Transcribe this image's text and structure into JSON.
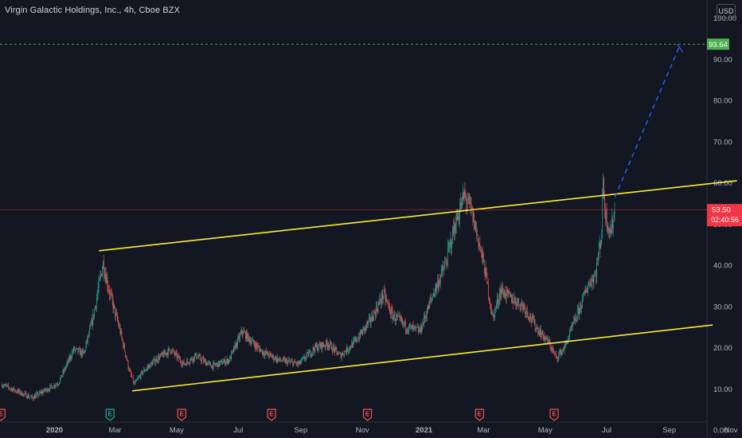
{
  "legend": "Virgin Galactic Holdings, Inc., 4h, Cboe BZX",
  "currency_button": "USD",
  "colors": {
    "background": "#131722",
    "up": "#26a69a",
    "down": "#ef5350",
    "channel": "#ffeb3b",
    "projection": "#2962ff",
    "target_label": "#4caf50",
    "price_label": "#f23645",
    "axis_text": "#b2b5be"
  },
  "chart_data": {
    "type": "candlestick",
    "title": "Virgin Galactic Holdings, Inc., 4h, Cboe BZX",
    "x_ticks": [
      {
        "label": "2020",
        "date": "2020-01-01",
        "bold": true
      },
      {
        "label": "Mar",
        "date": "2020-03-01"
      },
      {
        "label": "May",
        "date": "2020-05-01"
      },
      {
        "label": "Jul",
        "date": "2020-07-01"
      },
      {
        "label": "Sep",
        "date": "2020-09-01"
      },
      {
        "label": "Nov",
        "date": "2020-11-01"
      },
      {
        "label": "2021",
        "date": "2021-01-01",
        "bold": true
      },
      {
        "label": "Mar",
        "date": "2021-03-01"
      },
      {
        "label": "May",
        "date": "2021-05-01"
      },
      {
        "label": "Jul",
        "date": "2021-07-01"
      },
      {
        "label": "Sep",
        "date": "2021-09-01"
      },
      {
        "label": "Nov",
        "date": "2021-11-01"
      }
    ],
    "y_ticks": [
      "0.00",
      "10.00",
      "20.00",
      "30.00",
      "40.00",
      "50.00",
      "60.00",
      "70.00",
      "80.00",
      "90.00",
      "100.00"
    ],
    "ylim": [
      0,
      103
    ],
    "x_range": [
      "2019-11-08",
      "2021-11-12"
    ],
    "price_path": [
      [
        "2019-11-10",
        11.0
      ],
      [
        "2019-12-10",
        7.8
      ],
      [
        "2020-01-05",
        11.5
      ],
      [
        "2020-01-20",
        19.5
      ],
      [
        "2020-01-30",
        18.5
      ],
      [
        "2020-02-08",
        27
      ],
      [
        "2020-02-18",
        40.5
      ],
      [
        "2020-02-25",
        33
      ],
      [
        "2020-03-06",
        24
      ],
      [
        "2020-03-15",
        14.5
      ],
      [
        "2020-03-20",
        11
      ],
      [
        "2020-03-28",
        14
      ],
      [
        "2020-04-10",
        17
      ],
      [
        "2020-04-25",
        19.5
      ],
      [
        "2020-05-08",
        16
      ],
      [
        "2020-05-20",
        18
      ],
      [
        "2020-06-05",
        15.5
      ],
      [
        "2020-06-22",
        17
      ],
      [
        "2020-07-05",
        24
      ],
      [
        "2020-07-12",
        22
      ],
      [
        "2020-07-25",
        19
      ],
      [
        "2020-08-10",
        17
      ],
      [
        "2020-08-30",
        16
      ],
      [
        "2020-09-15",
        20
      ],
      [
        "2020-09-28",
        21
      ],
      [
        "2020-10-10",
        18
      ],
      [
        "2020-10-25",
        21.5
      ],
      [
        "2020-11-10",
        27
      ],
      [
        "2020-11-22",
        33
      ],
      [
        "2020-11-30",
        28
      ],
      [
        "2020-12-15",
        25
      ],
      [
        "2020-12-28",
        24
      ],
      [
        "2021-01-10",
        33
      ],
      [
        "2021-01-22",
        40
      ],
      [
        "2021-02-01",
        50
      ],
      [
        "2021-02-10",
        57
      ],
      [
        "2021-02-17",
        53
      ],
      [
        "2021-02-24",
        46
      ],
      [
        "2021-03-03",
        38
      ],
      [
        "2021-03-10",
        27
      ],
      [
        "2021-03-18",
        34
      ],
      [
        "2021-03-28",
        32
      ],
      [
        "2021-04-10",
        30
      ],
      [
        "2021-04-22",
        25
      ],
      [
        "2021-05-05",
        21
      ],
      [
        "2021-05-12",
        17.5
      ],
      [
        "2021-05-20",
        20
      ],
      [
        "2021-05-28",
        25
      ],
      [
        "2021-06-05",
        30
      ],
      [
        "2021-06-12",
        35
      ],
      [
        "2021-06-20",
        38
      ],
      [
        "2021-06-26",
        48
      ],
      [
        "2021-06-27",
        60
      ],
      [
        "2021-06-30",
        52
      ],
      [
        "2021-07-05",
        48
      ],
      [
        "2021-07-09",
        53.5
      ]
    ],
    "channel_upper": {
      "from": [
        "2020-02-14",
        43.5
      ],
      "to": [
        "2021-11-07",
        60.5
      ]
    },
    "channel_lower": {
      "from": [
        "2020-03-18",
        9.5
      ],
      "to": [
        "2021-10-14",
        25.5
      ]
    },
    "projection": {
      "from": [
        "2021-07-09",
        56.5
      ],
      "to": [
        "2021-09-12",
        93.64
      ]
    },
    "target_line": {
      "value": 93.64,
      "label": "93.64"
    },
    "price_line": {
      "value": 53.5,
      "label": "53.50",
      "countdown": "02:40:56"
    },
    "earnings_markers": [
      {
        "date": "2019-11-09",
        "label": "E",
        "color": "#ef5350"
      },
      {
        "date": "2020-02-25",
        "label": "E",
        "color": "#26a69a"
      },
      {
        "date": "2020-05-06",
        "label": "E",
        "color": "#ef5350"
      },
      {
        "date": "2020-08-03",
        "label": "E",
        "color": "#ef5350"
      },
      {
        "date": "2020-11-06",
        "label": "E",
        "color": "#ef5350"
      },
      {
        "date": "2021-02-25",
        "label": "E",
        "color": "#ef5350"
      },
      {
        "date": "2021-05-10",
        "label": "E",
        "color": "#ef5350"
      }
    ]
  }
}
